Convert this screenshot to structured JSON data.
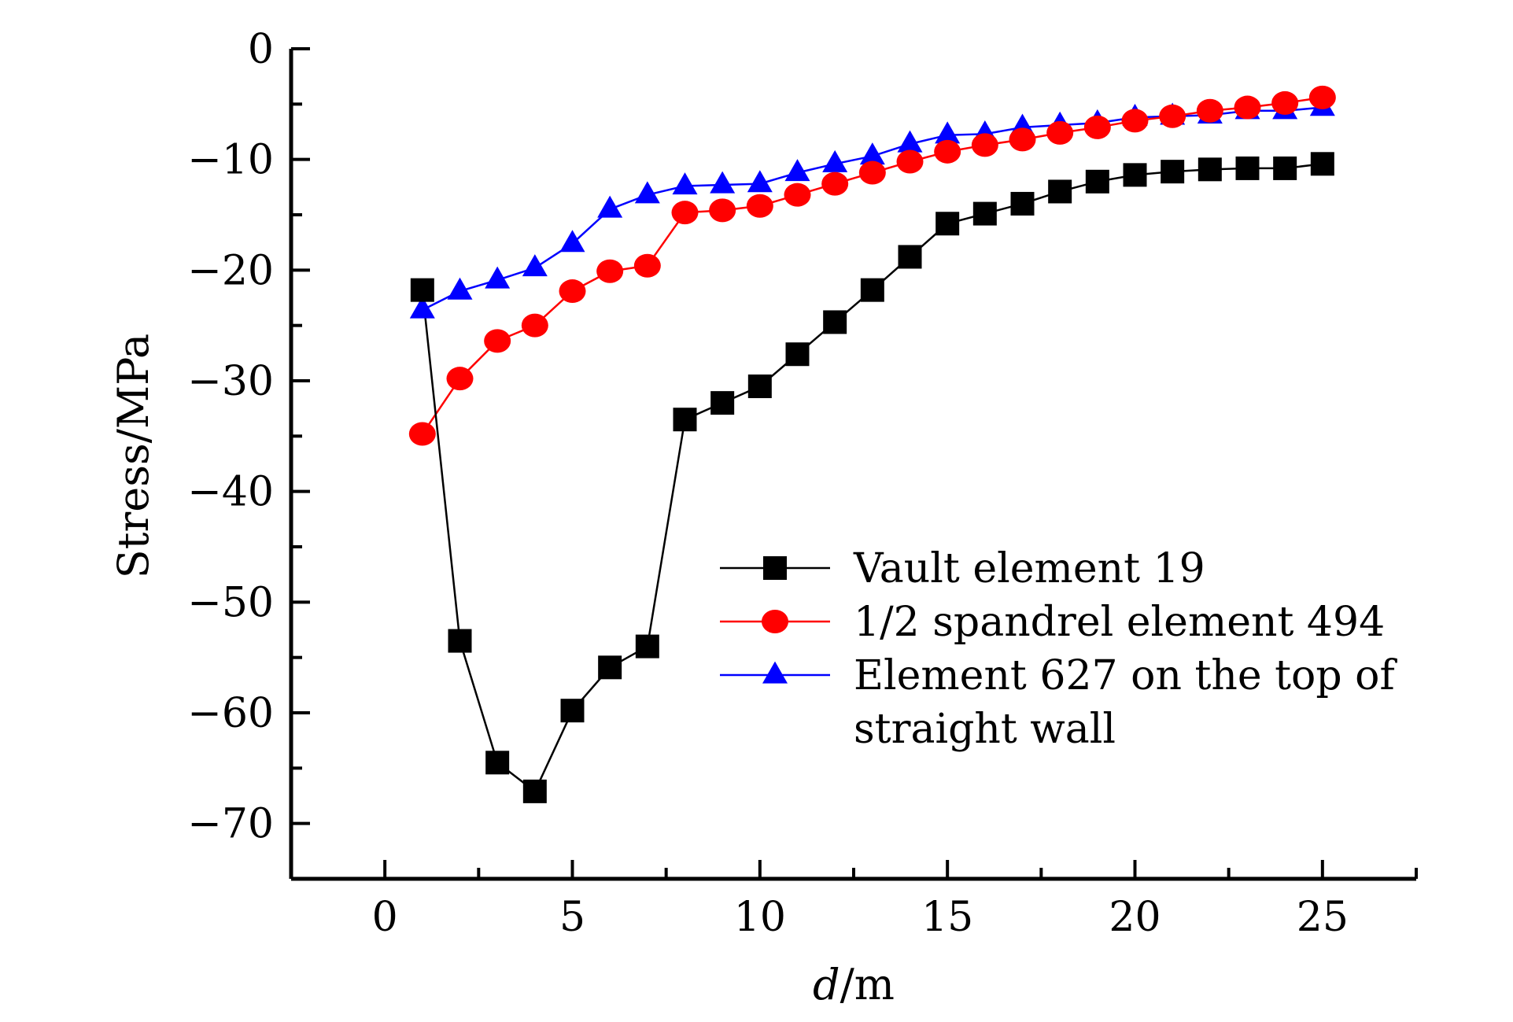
{
  "chart_data": {
    "type": "line",
    "title": "",
    "xlabel": "d/m",
    "xlabel_italic": "d",
    "xlabel_rest": "/m",
    "ylabel": "Stress/MPa",
    "xlim": [
      -2.5,
      27.5
    ],
    "ylim": [
      -75,
      0
    ],
    "xticks": [
      0,
      5,
      10,
      15,
      20,
      25
    ],
    "xtick_labels": [
      "0",
      "5",
      "10",
      "15",
      "20",
      "25"
    ],
    "yticks": [
      0,
      -10,
      -20,
      -30,
      -40,
      -50,
      -60,
      -70
    ],
    "ytick_labels": [
      "0",
      "−10",
      "−20",
      "−30",
      "−40",
      "−50",
      "−60",
      "−70"
    ],
    "grid": false,
    "legend_position": "center-right",
    "x": [
      1,
      2,
      3,
      4,
      5,
      6,
      7,
      8,
      9,
      10,
      11,
      12,
      13,
      14,
      15,
      16,
      17,
      18,
      19,
      20,
      21,
      22,
      23,
      24,
      25
    ],
    "series": [
      {
        "name": "Vault element 19",
        "color": "#000000",
        "marker": "square",
        "values": [
          -21.8,
          -53.5,
          -64.5,
          -67.1,
          -59.8,
          -55.9,
          -54,
          -33.5,
          -32,
          -30.5,
          -27.6,
          -24.7,
          -21.8,
          -18.8,
          -15.8,
          -14.9,
          -14,
          -12.9,
          -12,
          -11.4,
          -11.1,
          -10.9,
          -10.8,
          -10.8,
          -10.4
        ]
      },
      {
        "name": "1/2 spandrel element 494",
        "color": "#ff0000",
        "marker": "circle",
        "values": [
          -34.8,
          -29.8,
          -26.4,
          -25,
          -21.9,
          -20.1,
          -19.6,
          -14.8,
          -14.6,
          -14.2,
          -13.2,
          -12.2,
          -11.2,
          -10.2,
          -9.3,
          -8.7,
          -8.2,
          -7.6,
          -7.1,
          -6.5,
          -6.1,
          -5.6,
          -5.3,
          -4.9,
          -4.4
        ]
      },
      {
        "name": "Element 627 on the top of straight wall",
        "name_lines": [
          "Element 627 on the top of",
          "straight wall"
        ],
        "color": "#0000ff",
        "marker": "triangle",
        "values": [
          -23.6,
          -21.9,
          -20.9,
          -19.8,
          -17.6,
          -14.5,
          -13.2,
          -12.4,
          -12.3,
          -12.2,
          -11.2,
          -10.4,
          -9.7,
          -8.6,
          -7.8,
          -7.7,
          -7.1,
          -6.9,
          -6.7,
          -6.2,
          -6.1,
          -6,
          -5.6,
          -5.6,
          -5.3
        ]
      }
    ]
  }
}
